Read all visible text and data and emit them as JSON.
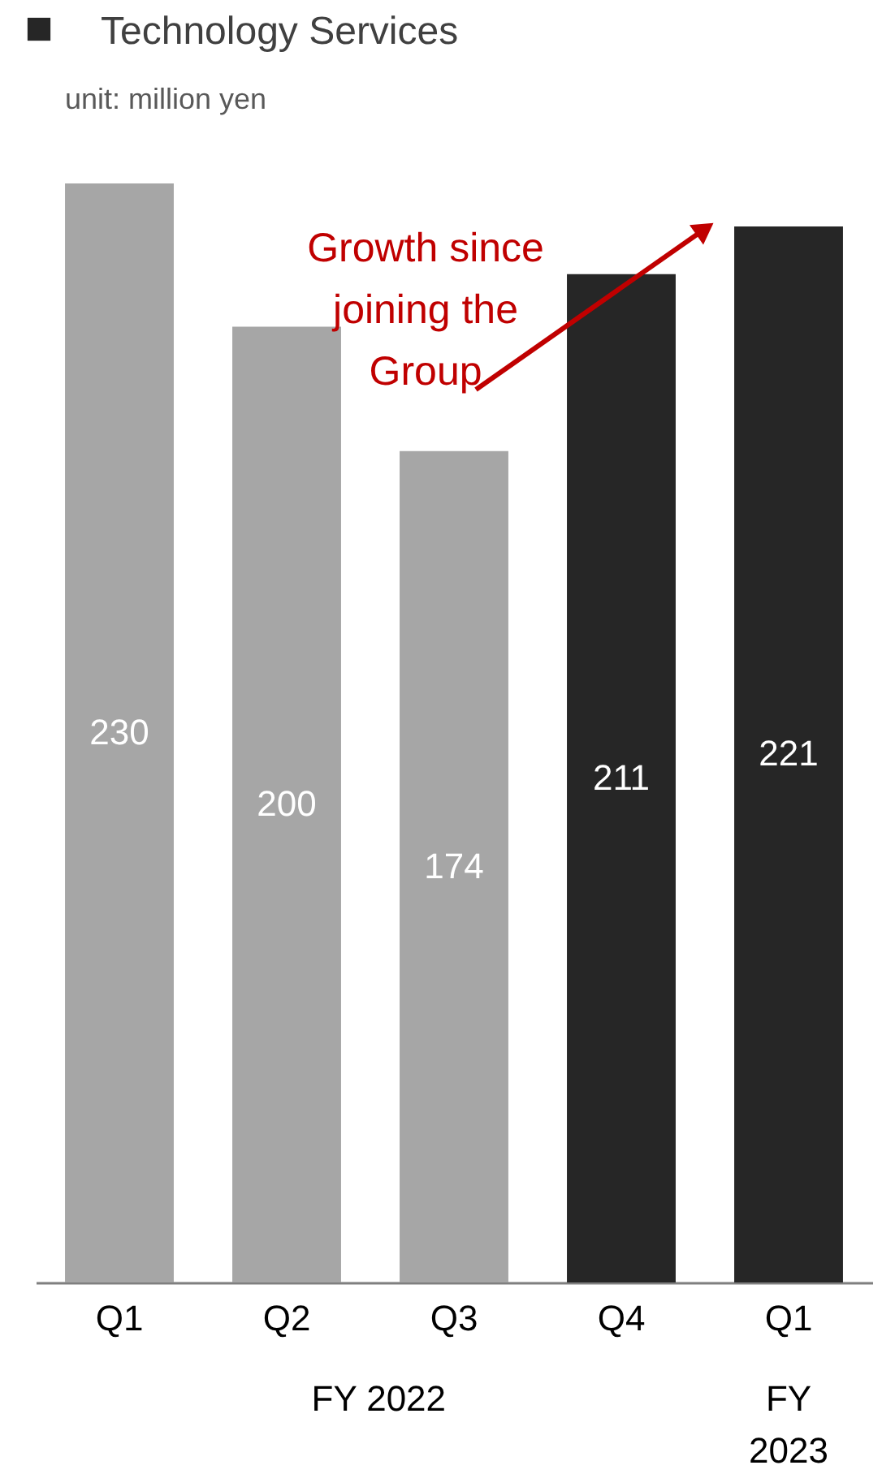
{
  "chart_data": {
    "type": "bar",
    "title": "Technology Services",
    "subtitle": "unit: million yen",
    "categories": [
      "Q1",
      "Q2",
      "Q3",
      "Q4",
      "Q1"
    ],
    "values": [
      230,
      200,
      174,
      211,
      221
    ],
    "colors": [
      "#a6a6a6",
      "#a6a6a6",
      "#a6a6a6",
      "#262626",
      "#262626"
    ],
    "data_labels": true,
    "annotations": [
      "Growth since joining the Group",
      "FY 2022",
      "FY 2023"
    ]
  }
}
